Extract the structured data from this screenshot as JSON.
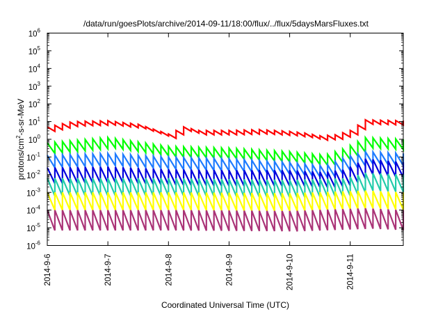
{
  "chart_data": {
    "type": "line",
    "title": "/data/run/goesPlots/archive/2014-09-11/18:00/flux/../flux/5daysMarsFluxes.txt",
    "xlabel": "Coordinated Universal Time (UTC)",
    "ylabel_parts": [
      "protons/cm",
      "2",
      "-s-sr-MeV"
    ],
    "y_scale": "log",
    "ylim": [
      1e-06,
      1000000.0
    ],
    "xlim": [
      "2014-09-06 00:00",
      "2014-09-11 21:00"
    ],
    "x_ticks": [
      "2014-9-6",
      "2014-9-7",
      "2014-9-8",
      "2014-9-9",
      "2014-9-10",
      "2014-9-11"
    ],
    "y_ticks": [
      {
        "base": "10",
        "exp": "-6",
        "value": 1e-06
      },
      {
        "base": "10",
        "exp": "-5",
        "value": 1e-05
      },
      {
        "base": "10",
        "exp": "-4",
        "value": 0.0001
      },
      {
        "base": "10",
        "exp": "-3",
        "value": 0.001
      },
      {
        "base": "10",
        "exp": "-2",
        "value": 0.01
      },
      {
        "base": "10",
        "exp": "-1",
        "value": 0.1
      },
      {
        "base": "10",
        "exp": "0",
        "value": 1
      },
      {
        "base": "10",
        "exp": "1",
        "value": 10
      },
      {
        "base": "10",
        "exp": "2",
        "value": 100
      },
      {
        "base": "10",
        "exp": "3",
        "value": 1000
      },
      {
        "base": "10",
        "exp": "4",
        "value": 10000
      },
      {
        "base": "10",
        "exp": "5",
        "value": 100000
      },
      {
        "base": "10",
        "exp": "6",
        "value": 1000000
      }
    ],
    "grid": false,
    "legend": "none",
    "series": [
      {
        "color": "#ff0000",
        "sawtooth_period_hours": 3,
        "sawtooth_drop_decades": 0.25,
        "peak_log10": [
          [
            0,
            0.7
          ],
          [
            10,
            1.0
          ],
          [
            24,
            1.05
          ],
          [
            36,
            0.85
          ],
          [
            48,
            0.3
          ],
          [
            54,
            0.7
          ],
          [
            60,
            0.5
          ],
          [
            72,
            0.5
          ],
          [
            84,
            0.55
          ],
          [
            96,
            0.45
          ],
          [
            102,
            0.35
          ],
          [
            108,
            0.2
          ],
          [
            114,
            0.25
          ],
          [
            120,
            0.5
          ],
          [
            126,
            1.1
          ],
          [
            141,
            1.05
          ]
        ]
      },
      {
        "color": "#00ff00",
        "sawtooth_period_hours": 3,
        "sawtooth_drop_decades": 0.6,
        "peak_log10": [
          [
            0,
            -0.2
          ],
          [
            24,
            0.1
          ],
          [
            48,
            -0.4
          ],
          [
            72,
            -0.5
          ],
          [
            96,
            -0.7
          ],
          [
            110,
            -0.9
          ],
          [
            118,
            -0.5
          ],
          [
            126,
            0.1
          ],
          [
            141,
            0.0
          ]
        ]
      },
      {
        "color": "#1e7bff",
        "sawtooth_period_hours": 3,
        "sawtooth_drop_decades": 0.7,
        "peak_log10": [
          [
            0,
            -0.9
          ],
          [
            24,
            -0.8
          ],
          [
            48,
            -1.0
          ],
          [
            72,
            -1.1
          ],
          [
            96,
            -1.3
          ],
          [
            110,
            -1.5
          ],
          [
            118,
            -1.0
          ],
          [
            126,
            -0.7
          ],
          [
            141,
            -0.8
          ]
        ]
      },
      {
        "color": "#0000dd",
        "sawtooth_period_hours": 3,
        "sawtooth_drop_decades": 0.9,
        "peak_log10": [
          [
            0,
            -1.6
          ],
          [
            24,
            -1.55
          ],
          [
            48,
            -1.7
          ],
          [
            72,
            -1.75
          ],
          [
            96,
            -1.75
          ],
          [
            110,
            -1.85
          ],
          [
            118,
            -1.7
          ],
          [
            126,
            -1.1
          ],
          [
            141,
            -1.3
          ]
        ]
      },
      {
        "color": "#22ccaa",
        "sawtooth_period_hours": 3,
        "sawtooth_drop_decades": 1.0,
        "peak_log10": [
          [
            0,
            -2.2
          ],
          [
            48,
            -2.2
          ],
          [
            96,
            -2.3
          ],
          [
            118,
            -2.2
          ],
          [
            126,
            -1.9
          ],
          [
            141,
            -2.0
          ]
        ]
      },
      {
        "color": "#ffff00",
        "sawtooth_period_hours": 3,
        "sawtooth_drop_decades": 1.0,
        "peak_log10": [
          [
            0,
            -3.0
          ],
          [
            48,
            -3.0
          ],
          [
            96,
            -3.05
          ],
          [
            126,
            -2.9
          ],
          [
            141,
            -3.0
          ]
        ]
      },
      {
        "color": "#aa3377",
        "sawtooth_period_hours": 3,
        "sawtooth_drop_decades": 1.15,
        "peak_log10": [
          [
            0,
            -4.0
          ],
          [
            48,
            -4.0
          ],
          [
            96,
            -4.05
          ],
          [
            126,
            -3.9
          ],
          [
            141,
            -4.0
          ]
        ]
      }
    ]
  }
}
